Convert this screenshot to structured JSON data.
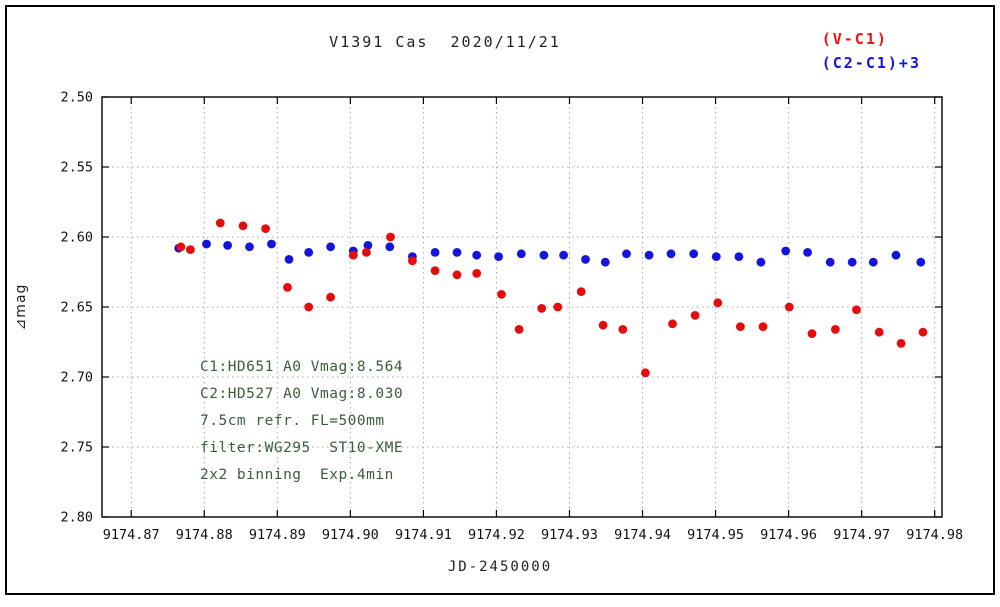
{
  "title": "V1391 Cas  2020/11/21",
  "legend": [
    {
      "label": "(V-C1)",
      "color": "#ee1111"
    },
    {
      "label": "(C2-C1)+3",
      "color": "#1414e0"
    }
  ],
  "annotations": [
    "C1:HD651 A0 Vmag:8.564",
    "C2:HD527 A0 Vmag:8.030",
    "7.5cm refr. FL=500mm",
    "filter:WG295  ST10-XME",
    "2x2 binning  Exp.4min"
  ],
  "colors": {
    "annotation": "#3d5c3d",
    "grid": "#aaaaaa",
    "axis": "#000000",
    "tick_label": "#111111",
    "background": "#ffffff"
  },
  "chart_data": {
    "type": "scatter",
    "title": "V1391 Cas  2020/11/21",
    "xlabel": "JD-2450000",
    "ylabel": "⊿mag",
    "xlim": [
      9174.866,
      9174.981
    ],
    "ylim": [
      2.5,
      2.8
    ],
    "y_axis_inverted_display": "2.50 at top, 2.80 at bottom",
    "grid": true,
    "legend_position": "top-right",
    "xticks": [
      9174.87,
      9174.88,
      9174.89,
      9174.9,
      9174.91,
      9174.92,
      9174.93,
      9174.94,
      9174.95,
      9174.96,
      9174.97,
      9174.98
    ],
    "xtick_labels": [
      "9174.87",
      "9174.88",
      "9174.89",
      "9174.90",
      "9174.91",
      "9174.92",
      "9174.93",
      "9174.94",
      "9174.95",
      "9174.96",
      "9174.97",
      "9174.98"
    ],
    "yticks": [
      2.5,
      2.55,
      2.6,
      2.65,
      2.7,
      2.75,
      2.8
    ],
    "ytick_labels": [
      "2.50",
      "2.55",
      "2.60",
      "2.65",
      "2.70",
      "2.75",
      "2.80"
    ],
    "series": [
      {
        "name": "(V-C1)",
        "color": "#e40c0c",
        "points": [
          [
            9174.8768,
            2.607
          ],
          [
            9174.8781,
            2.609
          ],
          [
            9174.8822,
            2.59
          ],
          [
            9174.8853,
            2.592
          ],
          [
            9174.8884,
            2.594
          ],
          [
            9174.8914,
            2.636
          ],
          [
            9174.8943,
            2.65
          ],
          [
            9174.8973,
            2.643
          ],
          [
            9174.9004,
            2.613
          ],
          [
            9174.9022,
            2.611
          ],
          [
            9174.9055,
            2.6
          ],
          [
            9174.9085,
            2.617
          ],
          [
            9174.9116,
            2.624
          ],
          [
            9174.9146,
            2.627
          ],
          [
            9174.9173,
            2.626
          ],
          [
            9174.9207,
            2.641
          ],
          [
            9174.9231,
            2.666
          ],
          [
            9174.9262,
            2.651
          ],
          [
            9174.9284,
            2.65
          ],
          [
            9174.9316,
            2.639
          ],
          [
            9174.9346,
            2.663
          ],
          [
            9174.9373,
            2.666
          ],
          [
            9174.9404,
            2.697
          ],
          [
            9174.9441,
            2.662
          ],
          [
            9174.9472,
            2.656
          ],
          [
            9174.9503,
            2.647
          ],
          [
            9174.9534,
            2.664
          ],
          [
            9174.9565,
            2.664
          ],
          [
            9174.9601,
            2.65
          ],
          [
            9174.9632,
            2.669
          ],
          [
            9174.9664,
            2.666
          ],
          [
            9174.9693,
            2.652
          ],
          [
            9174.9724,
            2.668
          ],
          [
            9174.9754,
            2.676
          ],
          [
            9174.9784,
            2.668
          ]
        ]
      },
      {
        "name": "(C2-C1)+3",
        "color": "#1414dc",
        "points": [
          [
            9174.8765,
            2.608
          ],
          [
            9174.8803,
            2.605
          ],
          [
            9174.8832,
            2.606
          ],
          [
            9174.8862,
            2.607
          ],
          [
            9174.8892,
            2.605
          ],
          [
            9174.8916,
            2.616
          ],
          [
            9174.8943,
            2.611
          ],
          [
            9174.8973,
            2.607
          ],
          [
            9174.9004,
            2.61
          ],
          [
            9174.9024,
            2.606
          ],
          [
            9174.9054,
            2.607
          ],
          [
            9174.9085,
            2.614
          ],
          [
            9174.9116,
            2.611
          ],
          [
            9174.9146,
            2.611
          ],
          [
            9174.9173,
            2.613
          ],
          [
            9174.9203,
            2.614
          ],
          [
            9174.9234,
            2.612
          ],
          [
            9174.9265,
            2.613
          ],
          [
            9174.9292,
            2.613
          ],
          [
            9174.9322,
            2.616
          ],
          [
            9174.9349,
            2.618
          ],
          [
            9174.9378,
            2.612
          ],
          [
            9174.9409,
            2.613
          ],
          [
            9174.9439,
            2.612
          ],
          [
            9174.947,
            2.612
          ],
          [
            9174.9501,
            2.614
          ],
          [
            9174.9532,
            2.614
          ],
          [
            9174.9562,
            2.618
          ],
          [
            9174.9596,
            2.61
          ],
          [
            9174.9626,
            2.611
          ],
          [
            9174.9657,
            2.618
          ],
          [
            9174.9687,
            2.618
          ],
          [
            9174.9716,
            2.618
          ],
          [
            9174.9747,
            2.613
          ],
          [
            9174.9781,
            2.618
          ]
        ]
      }
    ]
  }
}
